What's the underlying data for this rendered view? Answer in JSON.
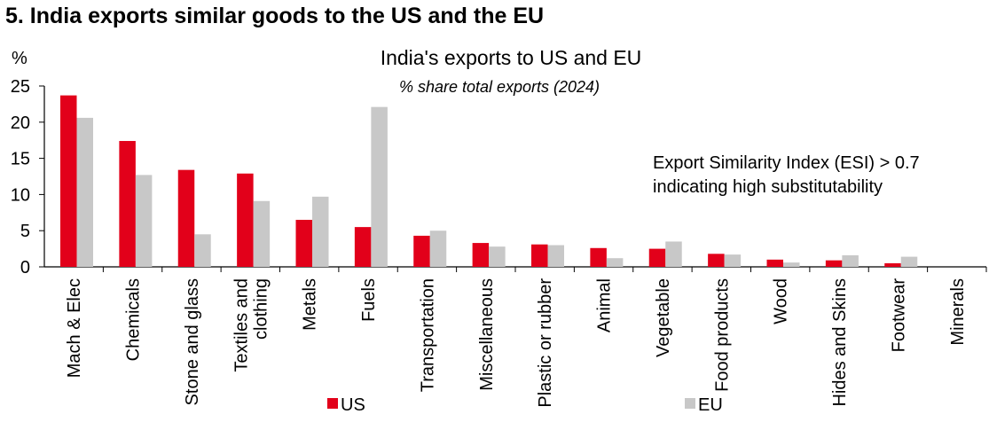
{
  "heading": "5. India exports similar goods to the US and the EU",
  "chart_data": {
    "type": "bar",
    "title": "India's exports to US and EU",
    "subtitle": "% share total exports (2024)",
    "ylabel": "%",
    "xlabel": "",
    "ylim": [
      0,
      25
    ],
    "yticks": [
      0,
      5,
      10,
      15,
      20,
      25
    ],
    "grid": false,
    "legend_position": "bottom",
    "annotation": [
      "Export Similarity Index (ESI) > 0.7",
      "indicating high substitutability"
    ],
    "categories": [
      [
        "Mach & Elec"
      ],
      [
        "Chemicals"
      ],
      [
        "Stone and glass"
      ],
      [
        "Textiles and",
        "clothing"
      ],
      [
        "Metals"
      ],
      [
        "Fuels"
      ],
      [
        "Transportation"
      ],
      [
        "Miscellaneous"
      ],
      [
        "Plastic or rubber"
      ],
      [
        "Animal"
      ],
      [
        "Vegetable"
      ],
      [
        "Food products"
      ],
      [
        "Wood"
      ],
      [
        "Hides and Skins"
      ],
      [
        "Footwear"
      ],
      [
        "Minerals"
      ]
    ],
    "series": [
      {
        "name": "US",
        "color": "#e2001a",
        "values": [
          23.7,
          17.4,
          13.4,
          12.9,
          6.5,
          5.5,
          4.3,
          3.3,
          3.1,
          2.6,
          2.5,
          1.8,
          1.0,
          0.9,
          0.5,
          0.0
        ]
      },
      {
        "name": "EU",
        "color": "#c8c8c8",
        "values": [
          20.6,
          12.7,
          4.5,
          9.1,
          9.7,
          22.1,
          5.0,
          2.8,
          3.0,
          1.2,
          3.5,
          1.7,
          0.6,
          1.6,
          1.4,
          0.0
        ]
      }
    ]
  }
}
